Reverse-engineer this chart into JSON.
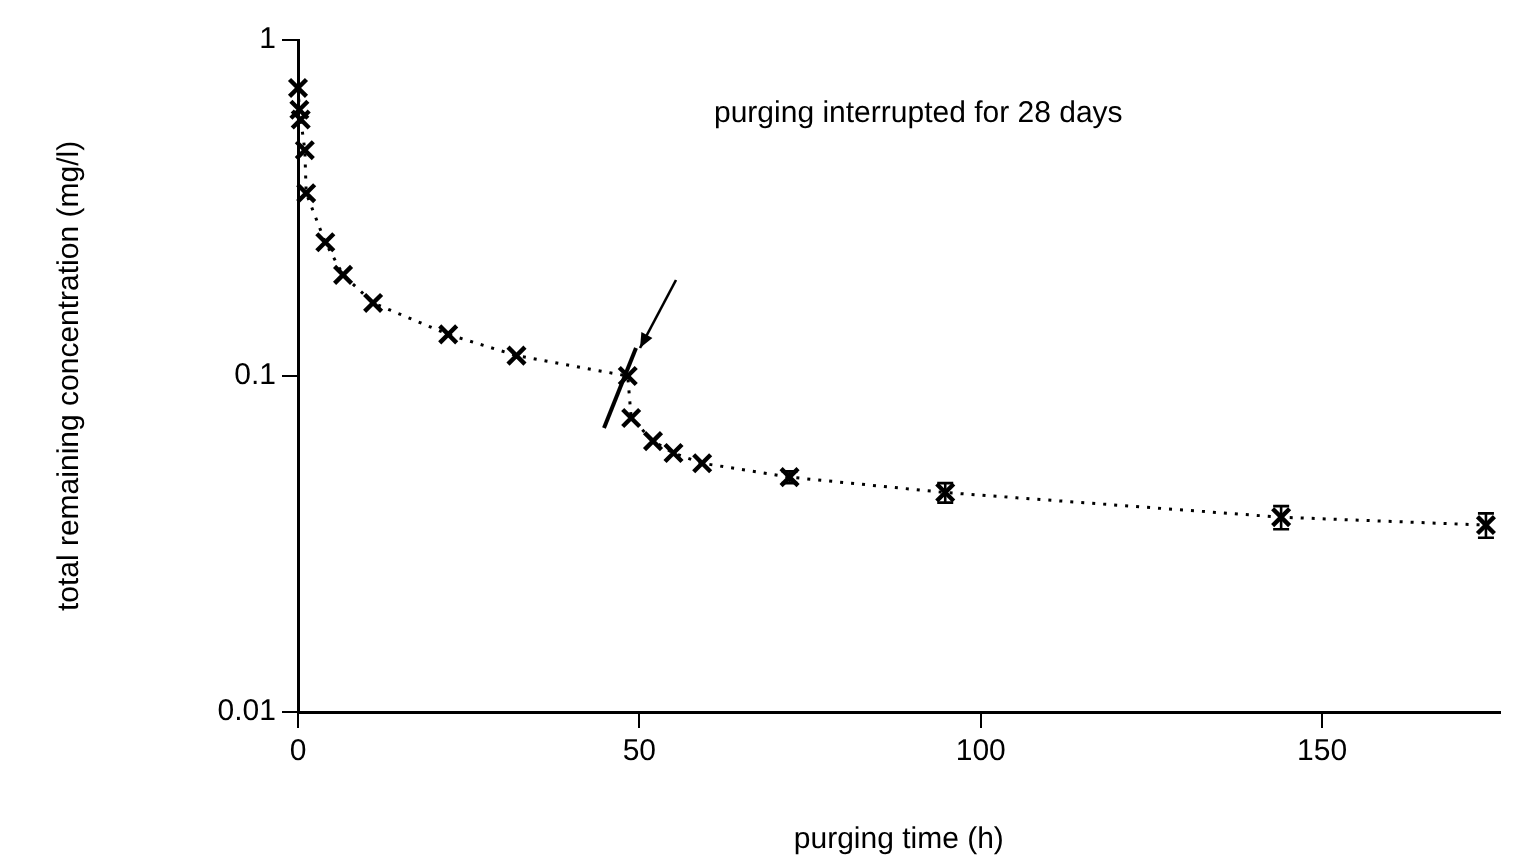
{
  "chart_data": {
    "type": "line",
    "xlabel": "purging time (h)",
    "ylabel": "total remaining concentration (mg/l)",
    "x": [
      0,
      0.2,
      0.4,
      1,
      1.2,
      4,
      6.6,
      11,
      22,
      32,
      48.3,
      48.8,
      52,
      55,
      59.2,
      72,
      94.8,
      144,
      174
    ],
    "values": [
      0.72,
      0.62,
      0.58,
      0.47,
      0.35,
      0.25,
      0.2,
      0.165,
      0.133,
      0.115,
      0.1,
      0.075,
      0.064,
      0.059,
      0.055,
      0.05,
      0.045,
      0.038,
      0.036
    ],
    "errors": [
      null,
      null,
      null,
      null,
      null,
      null,
      null,
      null,
      null,
      null,
      null,
      null,
      null,
      null,
      null,
      [
        0.048,
        0.052
      ],
      [
        0.042,
        0.048
      ],
      [
        0.035,
        0.041
      ],
      [
        0.033,
        0.039
      ]
    ],
    "color": "#000000",
    "marker": "cross",
    "line_style": "dotted",
    "log": "y",
    "grid": false,
    "legend": false,
    "xlim": [
      0,
      176
    ],
    "xticks": [
      0,
      50,
      100,
      150
    ],
    "ylim": [
      0.01,
      1
    ],
    "yticks": [
      0.01,
      0.1,
      1
    ],
    "annotations": [
      "purging interrupted for 28 days"
    ]
  }
}
